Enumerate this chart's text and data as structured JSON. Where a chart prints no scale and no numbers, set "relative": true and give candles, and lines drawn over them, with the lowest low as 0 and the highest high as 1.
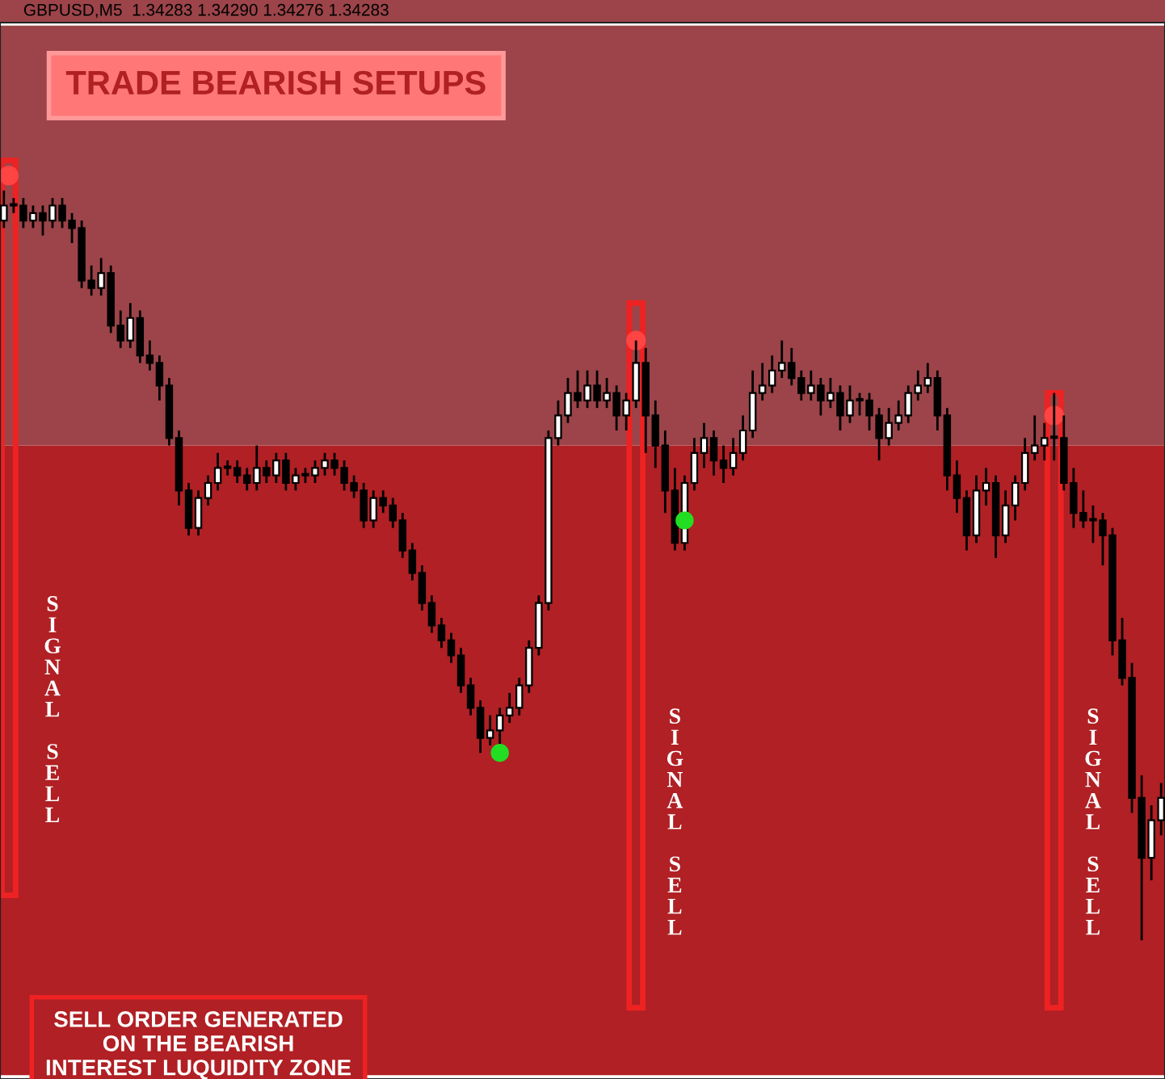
{
  "chart_data": {
    "type": "candlestick",
    "relative": true,
    "title": "GBPUSD,M5  1.34283 1.34290 1.34276 1.34283",
    "subtitle": "TRADE BEARISH SETUPS",
    "annotations": [
      "SIGNAL SELL",
      "SIGNAL SELL",
      "SIGNAL SELL",
      "SELL ORDER GENERATED\nON THE BEARISH\nINTEREST LUQUIDITY ZONE"
    ],
    "bands": [
      {
        "axis": "y",
        "from": -0.18,
        "to": 0.66,
        "color": "#b02024"
      },
      {
        "axis": "y",
        "from": 0.66,
        "to": 1.22,
        "color": "#9c4449"
      }
    ],
    "categories": [
      null,
      null,
      null,
      null,
      null,
      null,
      null,
      null,
      null,
      null,
      null,
      null,
      null,
      null,
      null,
      null,
      null,
      null,
      null,
      null,
      null,
      null,
      null,
      null,
      null,
      null,
      null,
      null,
      null,
      null,
      null,
      null,
      null,
      null,
      null,
      null,
      null,
      null,
      null,
      null,
      null,
      null,
      null,
      null,
      null,
      null,
      null,
      null,
      null,
      null,
      null,
      null,
      null,
      null,
      null,
      null,
      null,
      null,
      null,
      null,
      null,
      null,
      null,
      null,
      null,
      null,
      null,
      null,
      null,
      null,
      null,
      null,
      null,
      null,
      null,
      null,
      null,
      null,
      null,
      null,
      null,
      null,
      null,
      null,
      null,
      null,
      null,
      null,
      null,
      null,
      null,
      null,
      null,
      null,
      null,
      null,
      null,
      null,
      null,
      null,
      null,
      null,
      null,
      null,
      null,
      null,
      null,
      null,
      null,
      null,
      null,
      null,
      null,
      null,
      null,
      null,
      null,
      null,
      null,
      null
    ],
    "ohlc": [
      [
        0.96,
        1.0,
        0.95,
        0.98
      ],
      [
        0.98,
        0.99,
        0.97,
        0.98
      ],
      [
        0.98,
        0.99,
        0.95,
        0.96
      ],
      [
        0.96,
        0.98,
        0.95,
        0.97
      ],
      [
        0.97,
        0.98,
        0.94,
        0.96
      ],
      [
        0.96,
        0.99,
        0.95,
        0.98
      ],
      [
        0.98,
        0.99,
        0.95,
        0.96
      ],
      [
        0.96,
        0.97,
        0.93,
        0.95
      ],
      [
        0.95,
        0.96,
        0.87,
        0.88
      ],
      [
        0.88,
        0.9,
        0.86,
        0.87
      ],
      [
        0.87,
        0.91,
        0.86,
        0.89
      ],
      [
        0.89,
        0.9,
        0.81,
        0.82
      ],
      [
        0.82,
        0.84,
        0.79,
        0.8
      ],
      [
        0.8,
        0.85,
        0.79,
        0.83
      ],
      [
        0.83,
        0.84,
        0.77,
        0.78
      ],
      [
        0.78,
        0.8,
        0.76,
        0.77
      ],
      [
        0.77,
        0.78,
        0.72,
        0.74
      ],
      [
        0.74,
        0.75,
        0.66,
        0.67
      ],
      [
        0.67,
        0.68,
        0.58,
        0.6
      ],
      [
        0.6,
        0.61,
        0.54,
        0.55
      ],
      [
        0.55,
        0.6,
        0.54,
        0.59
      ],
      [
        0.59,
        0.62,
        0.58,
        0.61
      ],
      [
        0.61,
        0.65,
        0.6,
        0.63
      ],
      [
        0.63,
        0.64,
        0.62,
        0.63
      ],
      [
        0.63,
        0.64,
        0.61,
        0.62
      ],
      [
        0.62,
        0.63,
        0.6,
        0.61
      ],
      [
        0.61,
        0.66,
        0.6,
        0.63
      ],
      [
        0.63,
        0.64,
        0.61,
        0.62
      ],
      [
        0.62,
        0.65,
        0.61,
        0.64
      ],
      [
        0.64,
        0.65,
        0.6,
        0.61
      ],
      [
        0.61,
        0.63,
        0.6,
        0.62
      ],
      [
        0.62,
        0.63,
        0.61,
        0.62
      ],
      [
        0.62,
        0.64,
        0.61,
        0.63
      ],
      [
        0.63,
        0.65,
        0.62,
        0.64
      ],
      [
        0.64,
        0.65,
        0.62,
        0.63
      ],
      [
        0.63,
        0.64,
        0.6,
        0.61
      ],
      [
        0.61,
        0.62,
        0.59,
        0.6
      ],
      [
        0.6,
        0.61,
        0.55,
        0.56
      ],
      [
        0.56,
        0.6,
        0.55,
        0.59
      ],
      [
        0.59,
        0.6,
        0.57,
        0.58
      ],
      [
        0.58,
        0.59,
        0.55,
        0.56
      ],
      [
        0.56,
        0.57,
        0.51,
        0.52
      ],
      [
        0.52,
        0.53,
        0.48,
        0.49
      ],
      [
        0.49,
        0.5,
        0.44,
        0.45
      ],
      [
        0.45,
        0.46,
        0.41,
        0.42
      ],
      [
        0.42,
        0.43,
        0.39,
        0.4
      ],
      [
        0.4,
        0.41,
        0.37,
        0.38
      ],
      [
        0.38,
        0.39,
        0.33,
        0.34
      ],
      [
        0.34,
        0.35,
        0.3,
        0.31
      ],
      [
        0.31,
        0.32,
        0.25,
        0.27
      ],
      [
        0.27,
        0.3,
        0.26,
        0.28
      ],
      [
        0.28,
        0.31,
        0.26,
        0.3
      ],
      [
        0.3,
        0.33,
        0.29,
        0.31
      ],
      [
        0.31,
        0.35,
        0.3,
        0.34
      ],
      [
        0.34,
        0.4,
        0.33,
        0.39
      ],
      [
        0.39,
        0.46,
        0.38,
        0.45
      ],
      [
        0.45,
        0.68,
        0.44,
        0.67
      ],
      [
        0.67,
        0.72,
        0.66,
        0.7
      ],
      [
        0.7,
        0.75,
        0.69,
        0.73
      ],
      [
        0.73,
        0.76,
        0.71,
        0.72
      ],
      [
        0.72,
        0.76,
        0.71,
        0.74
      ],
      [
        0.74,
        0.76,
        0.71,
        0.72
      ],
      [
        0.72,
        0.75,
        0.71,
        0.73
      ],
      [
        0.73,
        0.74,
        0.68,
        0.7
      ],
      [
        0.7,
        0.73,
        0.68,
        0.72
      ],
      [
        0.72,
        0.8,
        0.71,
        0.77
      ],
      [
        0.77,
        0.79,
        0.65,
        0.7
      ],
      [
        0.7,
        0.72,
        0.63,
        0.66
      ],
      [
        0.66,
        0.68,
        0.57,
        0.6
      ],
      [
        0.6,
        0.63,
        0.52,
        0.53
      ],
      [
        0.53,
        0.62,
        0.52,
        0.61
      ],
      [
        0.61,
        0.67,
        0.6,
        0.65
      ],
      [
        0.65,
        0.69,
        0.63,
        0.67
      ],
      [
        0.67,
        0.68,
        0.62,
        0.64
      ],
      [
        0.64,
        0.66,
        0.61,
        0.63
      ],
      [
        0.63,
        0.67,
        0.62,
        0.65
      ],
      [
        0.65,
        0.7,
        0.64,
        0.68
      ],
      [
        0.68,
        0.76,
        0.67,
        0.73
      ],
      [
        0.73,
        0.77,
        0.72,
        0.74
      ],
      [
        0.74,
        0.78,
        0.73,
        0.76
      ],
      [
        0.76,
        0.8,
        0.75,
        0.77
      ],
      [
        0.77,
        0.79,
        0.74,
        0.75
      ],
      [
        0.75,
        0.76,
        0.72,
        0.73
      ],
      [
        0.73,
        0.76,
        0.72,
        0.74
      ],
      [
        0.74,
        0.75,
        0.7,
        0.72
      ],
      [
        0.72,
        0.75,
        0.71,
        0.73
      ],
      [
        0.73,
        0.74,
        0.68,
        0.7
      ],
      [
        0.7,
        0.74,
        0.69,
        0.72
      ],
      [
        0.72,
        0.73,
        0.7,
        0.72
      ],
      [
        0.72,
        0.73,
        0.68,
        0.7
      ],
      [
        0.7,
        0.71,
        0.64,
        0.67
      ],
      [
        0.67,
        0.71,
        0.66,
        0.69
      ],
      [
        0.69,
        0.72,
        0.68,
        0.7
      ],
      [
        0.7,
        0.74,
        0.69,
        0.73
      ],
      [
        0.73,
        0.76,
        0.72,
        0.74
      ],
      [
        0.74,
        0.77,
        0.73,
        0.75
      ],
      [
        0.75,
        0.76,
        0.68,
        0.7
      ],
      [
        0.7,
        0.71,
        0.6,
        0.62
      ],
      [
        0.62,
        0.64,
        0.57,
        0.59
      ],
      [
        0.59,
        0.6,
        0.52,
        0.54
      ],
      [
        0.54,
        0.62,
        0.53,
        0.6
      ],
      [
        0.6,
        0.63,
        0.58,
        0.61
      ],
      [
        0.61,
        0.62,
        0.51,
        0.54
      ],
      [
        0.54,
        0.6,
        0.53,
        0.58
      ],
      [
        0.58,
        0.62,
        0.56,
        0.61
      ],
      [
        0.61,
        0.67,
        0.6,
        0.65
      ],
      [
        0.65,
        0.7,
        0.64,
        0.66
      ],
      [
        0.66,
        0.69,
        0.64,
        0.67
      ],
      [
        0.67,
        0.73,
        0.64,
        0.67
      ],
      [
        0.67,
        0.7,
        0.6,
        0.61
      ],
      [
        0.61,
        0.63,
        0.55,
        0.57
      ],
      [
        0.57,
        0.6,
        0.55,
        0.56
      ],
      [
        0.56,
        0.58,
        0.53,
        0.56
      ],
      [
        0.56,
        0.57,
        0.5,
        0.54
      ],
      [
        0.54,
        0.55,
        0.38,
        0.4
      ],
      [
        0.4,
        0.43,
        0.34,
        0.35
      ],
      [
        0.35,
        0.37,
        0.17,
        0.19
      ],
      [
        0.19,
        0.22,
        0.0,
        0.11
      ],
      [
        0.11,
        0.18,
        0.08,
        0.16
      ],
      [
        0.16,
        0.21,
        0.14,
        0.19
      ]
    ]
  }
}
